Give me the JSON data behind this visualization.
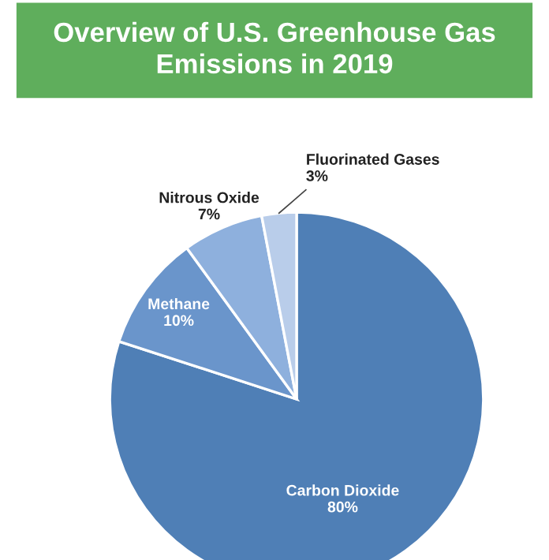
{
  "chart_data": {
    "type": "pie",
    "title": "Overview of U.S. Greenhouse Gas\nEmissions in 2019",
    "categories": [
      "Carbon Dioxide",
      "Methane",
      "Nitrous Oxide",
      "Fluorinated Gases"
    ],
    "values": [
      80,
      10,
      7,
      3
    ],
    "value_labels": [
      "80%",
      "10%",
      "7%",
      "3%"
    ],
    "colors": [
      "#4f7fb6",
      "#6a95cb",
      "#8eb0dd",
      "#b9cdea"
    ]
  }
}
